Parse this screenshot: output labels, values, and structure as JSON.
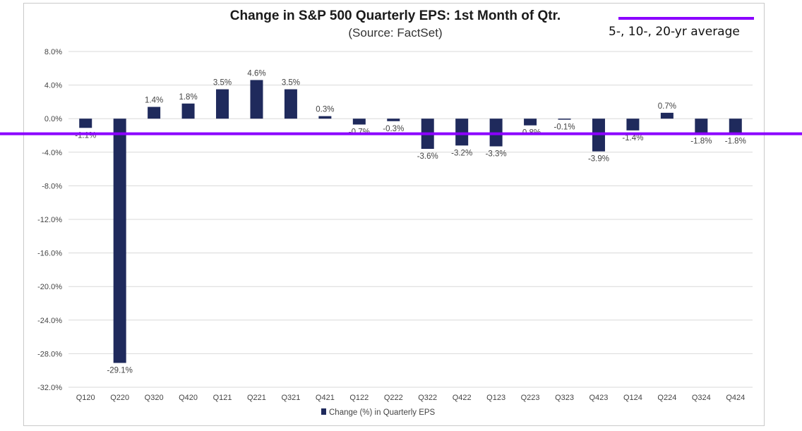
{
  "chart_data": {
    "type": "bar",
    "title": "Change in S&P 500 Quarterly  EPS: 1st Month of Qtr.",
    "subtitle": "(Source: FactSet)",
    "categories": [
      "Q120",
      "Q220",
      "Q320",
      "Q420",
      "Q121",
      "Q221",
      "Q321",
      "Q421",
      "Q122",
      "Q222",
      "Q322",
      "Q422",
      "Q123",
      "Q223",
      "Q323",
      "Q423",
      "Q124",
      "Q224",
      "Q324",
      "Q424"
    ],
    "series": [
      {
        "name": "Change (%) in Quarterly EPS",
        "values": [
          -1.1,
          -29.1,
          1.4,
          1.8,
          3.5,
          4.6,
          3.5,
          0.3,
          -0.7,
          -0.3,
          -3.6,
          -3.2,
          -3.3,
          -0.8,
          -0.1,
          -3.9,
          -1.4,
          0.7,
          -1.8,
          -1.8
        ],
        "labels": [
          "-1.1%",
          "-29.1%",
          "1.4%",
          "1.8%",
          "3.5%",
          "4.6%",
          "3.5%",
          "0.3%",
          "-0.7%",
          "-0.3%",
          "-3.6%",
          "-3.2%",
          "-3.3%",
          "-0.8%",
          "-0.1%",
          "-3.9%",
          "-1.4%",
          "0.7%",
          "-1.8%",
          "-1.8%"
        ],
        "color": "#1f2a5c"
      }
    ],
    "ylim": [
      -32,
      8
    ],
    "yticks": [
      8,
      4,
      0,
      -4,
      -8,
      -12,
      -16,
      -20,
      -24,
      -28,
      -32
    ],
    "ytick_labels": [
      "8.0%",
      "4.0%",
      "0.0%",
      "-4.0%",
      "-8.0%",
      "-12.0%",
      "-16.0%",
      "-20.0%",
      "-24.0%",
      "-28.0%",
      "-32.0%"
    ],
    "grid": true,
    "legend_position": "bottom",
    "overlay": {
      "label": "5-, 10-, 20-yr average",
      "value": -1.8,
      "color": "#8b00ff"
    }
  }
}
